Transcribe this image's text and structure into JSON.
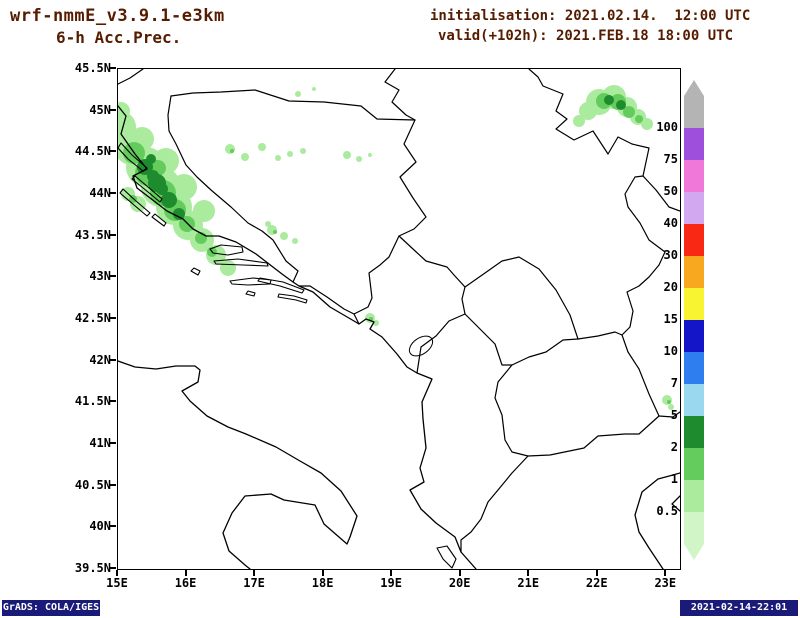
{
  "header": {
    "model": "wrf-nmmE_v3.9.1-e3km",
    "product": "6-h Acc.Prec.",
    "init": "initialisation: 2021.02.14.  12:00 UTC",
    "valid": "valid(+102h): 2021.FEB.18 18:00 UTC"
  },
  "footer": {
    "credit": "GrADS: COLA/IGES",
    "timestamp": "2021-02-14-22:01"
  },
  "colors": {
    "header_text": "#551c00",
    "stamp_background": "#1a1a78",
    "map_lines": "#000000"
  },
  "chart_data": {
    "type": "heatmap",
    "title": "wrf-nmmE_v3.9.1-e3km 6-h accumulated precipitation (mm)",
    "subtitle": "init 2021.02.14 12:00 UTC, valid(+102h) 2021.FEB.18 18:00 UTC",
    "region": "Adriatic / Balkans",
    "x_axis": {
      "label": "longitude",
      "ticks": [
        "15E",
        "16E",
        "17E",
        "18E",
        "19E",
        "20E",
        "21E",
        "22E",
        "23E"
      ],
      "range": [
        15,
        23.2
      ]
    },
    "y_axis": {
      "label": "latitude",
      "ticks": [
        "45.5N",
        "45N",
        "44.5N",
        "44N",
        "43.5N",
        "43N",
        "42.5N",
        "42N",
        "41.5N",
        "41N",
        "40.5N",
        "40N",
        "39.5N"
      ],
      "range": [
        39.5,
        45.5
      ]
    },
    "colorbar": {
      "units": "mm",
      "levels": [
        0.5,
        1,
        2,
        5,
        7,
        10,
        15,
        20,
        30,
        40,
        50,
        75,
        100
      ],
      "labels": [
        "100",
        "75",
        "50",
        "40",
        "30",
        "20",
        "15",
        "10",
        "7",
        "5",
        "2",
        "1",
        "0.5"
      ],
      "segments": [
        {
          "range": "> 100",
          "color": "#b4b4b4"
        },
        {
          "range": "75-100",
          "color": "#9e50dc"
        },
        {
          "range": "50-75",
          "color": "#f078d8"
        },
        {
          "range": "40-50",
          "color": "#d2a8f0"
        },
        {
          "range": "30-40",
          "color": "#f82814"
        },
        {
          "range": "20-30",
          "color": "#f8a81e"
        },
        {
          "range": "15-20",
          "color": "#f8f432"
        },
        {
          "range": "10-15",
          "color": "#1414c8"
        },
        {
          "range": "7-10",
          "color": "#2f7ef0"
        },
        {
          "range": "5-7",
          "color": "#9ad8f0"
        },
        {
          "range": "2-5",
          "color": "#1e8c2e"
        },
        {
          "range": "1-2",
          "color": "#63cc5c"
        },
        {
          "range": "0.5-1",
          "color": "#aaeb9e"
        },
        {
          "range": "< 0.5",
          "color": "#d2f5c8"
        }
      ]
    },
    "precip_areas": [
      {
        "region": "NE Adriatic coast, Velebit-Zadar-Sibenik (Croatia)",
        "approx_lon": "15.0-16.5E",
        "approx_lat": "43.5-45.0N",
        "intensity_mm": "0.5-5"
      },
      {
        "region": "Scattered spots over W and C Bosnia",
        "approx_lon": "16.4-17.7E",
        "approx_lat": "43.4-44.6N",
        "intensity_mm": "0.5-1"
      },
      {
        "region": "N Bosnia small spots",
        "approx_lon": "18.2-18.7E",
        "approx_lat": "44.3-44.6N",
        "intensity_mm": "0.5-1"
      },
      {
        "region": "Montenegro coast (Boka)",
        "approx_lon": "18.5-18.8E",
        "approx_lat": "42.3-42.6N",
        "intensity_mm": "0.5-1"
      },
      {
        "region": "Banat / S Carpathians (Serbia-Romania border)",
        "approx_lon": "21.6-22.6E",
        "approx_lat": "44.7-45.4N",
        "intensity_mm": "0.5-5"
      },
      {
        "region": "W Bulgaria border spot",
        "approx_lon": "22.8-23.1E",
        "approx_lat": "41.3-41.6N",
        "intensity_mm": "0.5-1"
      }
    ],
    "layout": {
      "grid": false,
      "legend_position": "right vertical colorbar"
    }
  }
}
